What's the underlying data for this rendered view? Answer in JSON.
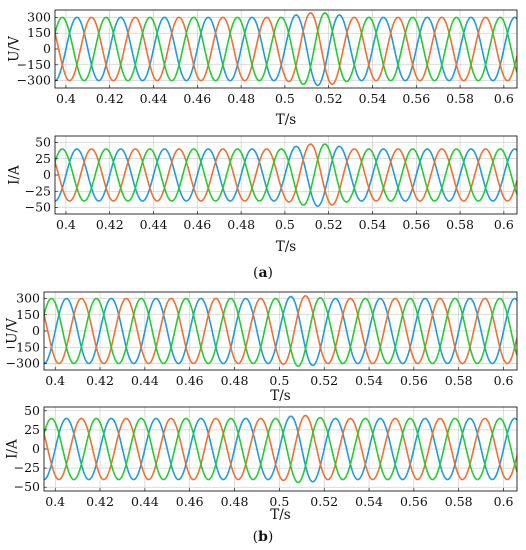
{
  "chart_data": [
    {
      "id": "a-voltage",
      "type": "line",
      "panel": "a",
      "xlabel": "T/s",
      "ylabel": "U/V",
      "xlim": [
        0.395,
        0.606
      ],
      "ylim": [
        -370,
        370
      ],
      "xticks": [
        "0.4",
        "0.42",
        "0.44",
        "0.46",
        "0.48",
        "0.5",
        "0.52",
        "0.54",
        "0.56",
        "0.58",
        "0.6"
      ],
      "xtick_values": [
        0.4,
        0.42,
        0.44,
        0.46,
        0.48,
        0.5,
        0.52,
        0.54,
        0.56,
        0.58,
        0.6
      ],
      "yticks": [
        "300",
        "150",
        "0",
        "−150",
        "−300"
      ],
      "ytick_values": [
        300,
        150,
        0,
        -150,
        -300
      ],
      "grid": true,
      "waveform": {
        "frequency_hz": 50,
        "amplitude": 300,
        "disturbance": {
          "start": 0.5,
          "end": 0.53,
          "peak_amplitude": 345
        }
      },
      "series": [
        {
          "color": "#1f9bde",
          "phase_deg": 0
        },
        {
          "color": "#f07030",
          "phase_deg": -120
        },
        {
          "color": "#22cc33",
          "phase_deg": 120
        }
      ]
    },
    {
      "id": "a-current",
      "type": "line",
      "panel": "a",
      "xlabel": "T/s",
      "ylabel": "I/A",
      "xlim": [
        0.395,
        0.606
      ],
      "ylim": [
        -60,
        60
      ],
      "xticks": [
        "0.4",
        "0.42",
        "0.44",
        "0.46",
        "0.48",
        "0.5",
        "0.52",
        "0.54",
        "0.56",
        "0.58",
        "0.6"
      ],
      "xtick_values": [
        0.4,
        0.42,
        0.44,
        0.46,
        0.48,
        0.5,
        0.52,
        0.54,
        0.56,
        0.58,
        0.6
      ],
      "yticks": [
        "50",
        "25",
        "0",
        "−25",
        "−50"
      ],
      "ytick_values": [
        50,
        25,
        0,
        -25,
        -50
      ],
      "grid": true,
      "waveform": {
        "frequency_hz": 50,
        "amplitude": 40,
        "disturbance": {
          "start": 0.5,
          "end": 0.53,
          "peak_amplitude": 48
        }
      },
      "series": [
        {
          "color": "#1f9bde",
          "phase_deg": 0
        },
        {
          "color": "#f07030",
          "phase_deg": -120
        },
        {
          "color": "#22cc33",
          "phase_deg": 120
        }
      ]
    },
    {
      "id": "b-voltage",
      "type": "line",
      "panel": "b",
      "xlabel": "T/s",
      "ylabel": "U/V",
      "xlim": [
        0.395,
        0.606
      ],
      "ylim": [
        -360,
        360
      ],
      "xticks": [
        "0.4",
        "0.42",
        "0.44",
        "0.46",
        "0.48",
        "0.5",
        "0.52",
        "0.54",
        "0.56",
        "0.58",
        "0.6"
      ],
      "xtick_values": [
        0.4,
        0.42,
        0.44,
        0.46,
        0.48,
        0.5,
        0.52,
        0.54,
        0.56,
        0.58,
        0.6
      ],
      "yticks": [
        "300",
        "150",
        "0",
        "−150",
        "−300"
      ],
      "ytick_values": [
        300,
        150,
        0,
        -150,
        -300
      ],
      "grid": true,
      "waveform": {
        "frequency_hz": 50,
        "amplitude": 300,
        "disturbance": {
          "start": 0.5,
          "end": 0.52,
          "peak_amplitude": 325
        }
      },
      "series": [
        {
          "color": "#1f9bde",
          "phase_deg": 0
        },
        {
          "color": "#f07030",
          "phase_deg": -120
        },
        {
          "color": "#22cc33",
          "phase_deg": 120
        }
      ]
    },
    {
      "id": "b-current",
      "type": "line",
      "panel": "b",
      "xlabel": "T/s",
      "ylabel": "I/A",
      "xlim": [
        0.395,
        0.606
      ],
      "ylim": [
        -55,
        55
      ],
      "xticks": [
        "0.4",
        "0.42",
        "0.44",
        "0.46",
        "0.48",
        "0.5",
        "0.52",
        "0.54",
        "0.56",
        "0.58",
        "0.6"
      ],
      "xtick_values": [
        0.4,
        0.42,
        0.44,
        0.46,
        0.48,
        0.5,
        0.52,
        0.54,
        0.56,
        0.58,
        0.6
      ],
      "yticks": [
        "50",
        "25",
        "0",
        "−25",
        "−50"
      ],
      "ytick_values": [
        50,
        25,
        0,
        -25,
        -50
      ],
      "grid": true,
      "waveform": {
        "frequency_hz": 50,
        "amplitude": 40,
        "disturbance": {
          "start": 0.5,
          "end": 0.52,
          "peak_amplitude": 44
        }
      },
      "series": [
        {
          "color": "#1f9bde",
          "phase_deg": 0
        },
        {
          "color": "#f07030",
          "phase_deg": -120
        },
        {
          "color": "#22cc33",
          "phase_deg": 120
        }
      ]
    }
  ],
  "panel_labels": {
    "a": {
      "open": "(",
      "letter": "a",
      "close": ")"
    },
    "b": {
      "open": "(",
      "letter": "b",
      "close": ")"
    }
  }
}
